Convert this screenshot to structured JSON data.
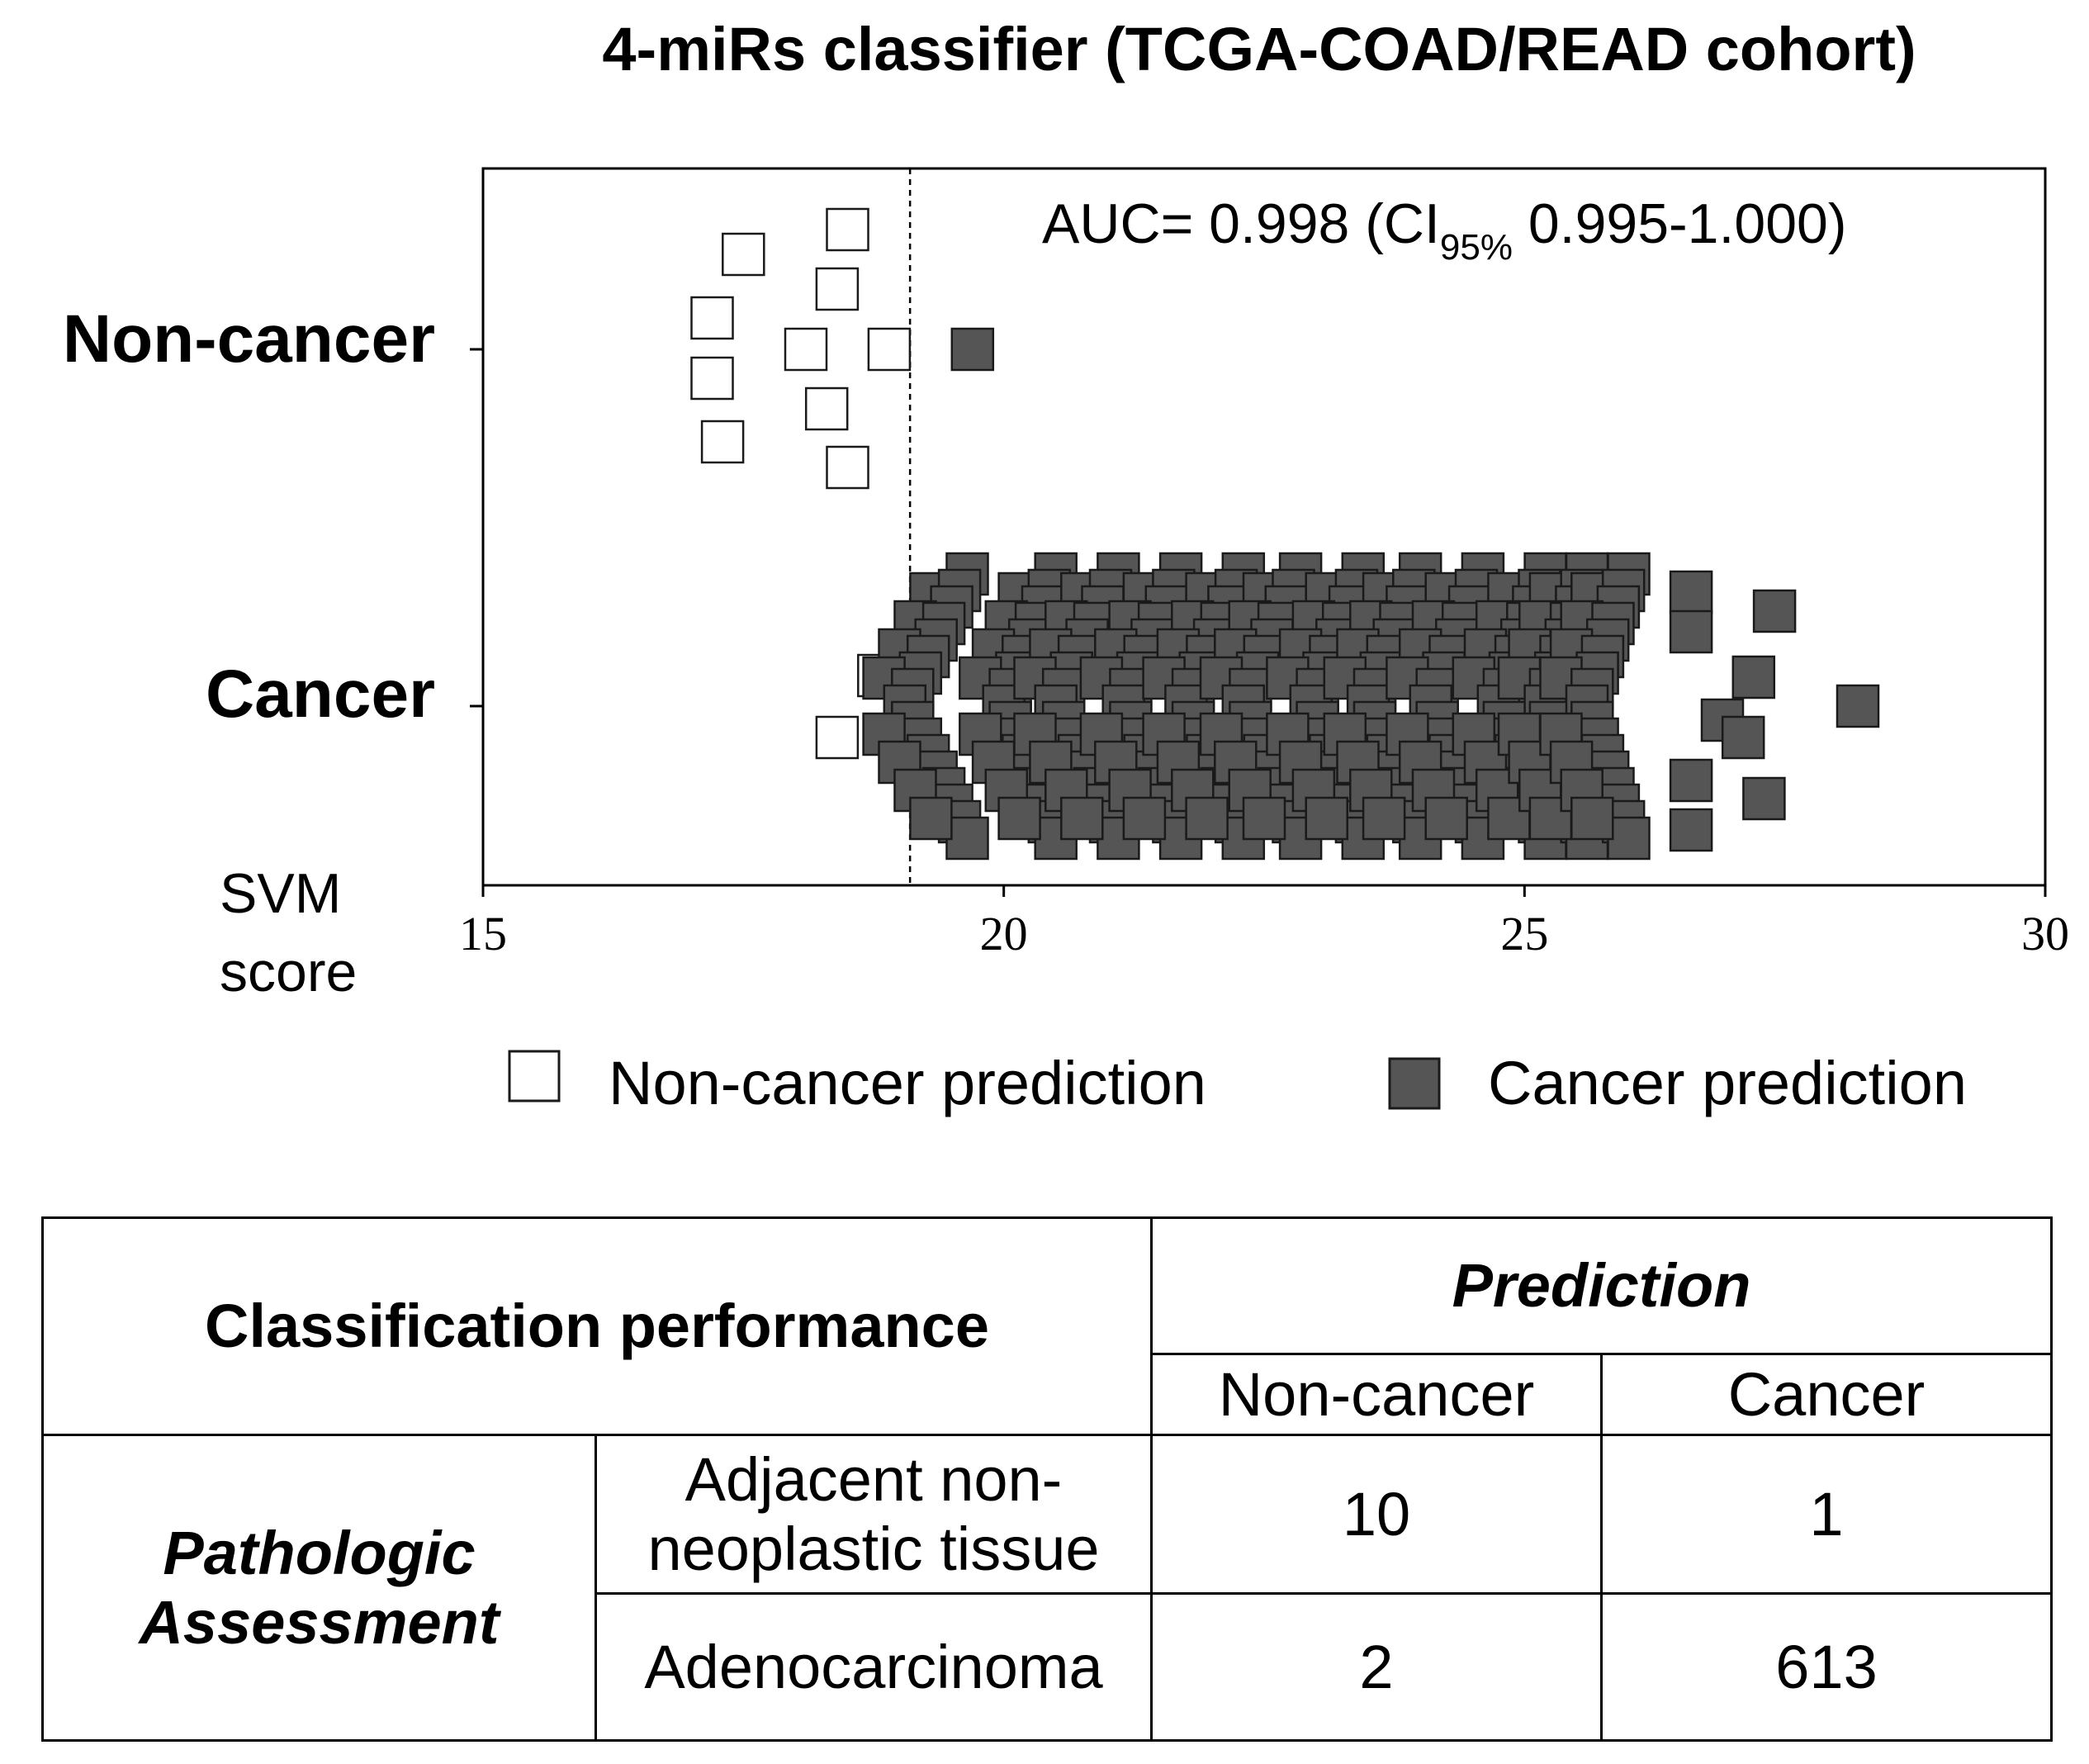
{
  "chart_data": {
    "type": "scatter",
    "title": "4-miRs classifier (TCGA-COAD/READ cohort)",
    "xlabel_line1": "SVM",
    "xlabel_line2": "score",
    "xlim": [
      15,
      30
    ],
    "xticks": [
      15,
      20,
      25,
      30
    ],
    "threshold": 19.1,
    "categories": [
      "Non-cancer",
      "Cancer"
    ],
    "annotation": {
      "prefix": "AUC= 0.998 (CI",
      "subscript": "95%",
      "suffix": " 0.995-1.000)"
    },
    "legend": [
      {
        "label": "Non-cancer prediction",
        "color": "#ffffff"
      },
      {
        "label": "Cancer prediction",
        "color": "#555555"
      }
    ],
    "colors": {
      "non_cancer_prediction": "#ffffff",
      "cancer_prediction": "#555555",
      "edge": "#1a1a1a"
    },
    "series": [
      {
        "name": "Non-cancer",
        "points": [
          {
            "score": 18.5,
            "prediction": "non-cancer"
          },
          {
            "score": 17.5,
            "prediction": "non-cancer"
          },
          {
            "score": 18.4,
            "prediction": "non-cancer"
          },
          {
            "score": 17.2,
            "prediction": "non-cancer"
          },
          {
            "score": 18.1,
            "prediction": "non-cancer"
          },
          {
            "score": 18.9,
            "prediction": "non-cancer"
          },
          {
            "score": 17.2,
            "prediction": "non-cancer"
          },
          {
            "score": 18.3,
            "prediction": "non-cancer"
          },
          {
            "score": 17.3,
            "prediction": "non-cancer"
          },
          {
            "score": 18.5,
            "prediction": "non-cancer"
          },
          {
            "score": 19.7,
            "prediction": "cancer"
          }
        ]
      },
      {
        "name": "Cancer",
        "non_cancer_points": [
          18.8,
          18.4
        ],
        "cancer_point_count": 613,
        "cancer_score_range": [
          19.2,
          28.3
        ],
        "cancer_outliers": [
          26.6,
          27.4,
          27.2,
          28.2
        ]
      }
    ]
  },
  "table": {
    "header_title": "Classification performance",
    "prediction_label": "Prediction",
    "col_non_cancer": "Non-cancer",
    "col_cancer": "Cancer",
    "row_group_line1": "Pathologic",
    "row_group_line2": "Assessment",
    "row1_label_line1": "Adjacent non-",
    "row1_label_line2": "neoplastic tissue",
    "row1_non_cancer": "10",
    "row1_cancer": "1",
    "row2_label": "Adenocarcinoma",
    "row2_non_cancer": "2",
    "row2_cancer": "613"
  }
}
